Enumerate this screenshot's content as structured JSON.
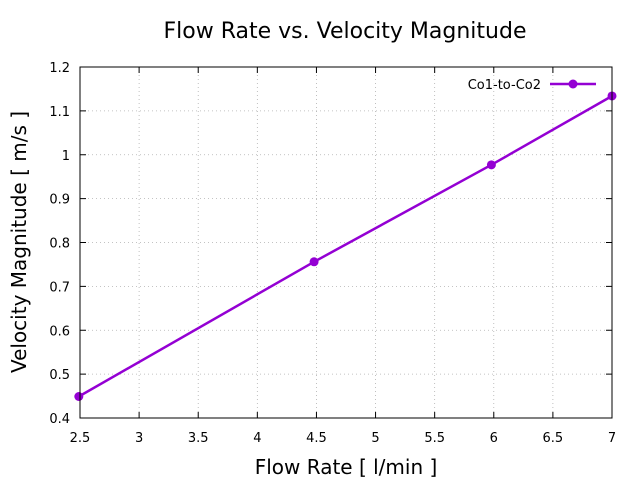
{
  "chart_data": {
    "type": "line",
    "title": "Flow Rate vs. Velocity Magnitude",
    "xlabel": "Flow Rate [ l/min ]",
    "ylabel": "Velocity Magnitude [ m/s ]",
    "xlim": [
      2.5,
      7
    ],
    "ylim": [
      0.4,
      1.2
    ],
    "xticks": [
      "2.5",
      "3",
      "3.5",
      "4",
      "4.5",
      "5",
      "5.5",
      "6",
      "6.5",
      "7"
    ],
    "yticks": [
      "0.4",
      "0.5",
      "0.6",
      "0.7",
      "0.8",
      "0.9",
      "1",
      "1.1",
      "1.2"
    ],
    "grid": true,
    "legend_position": "top-right",
    "series": [
      {
        "name": "Co1-to-Co2",
        "color": "#9400d3",
        "x": [
          2.49,
          4.48,
          5.98,
          7.0
        ],
        "y": [
          0.449,
          0.756,
          0.977,
          1.134
        ]
      }
    ]
  }
}
